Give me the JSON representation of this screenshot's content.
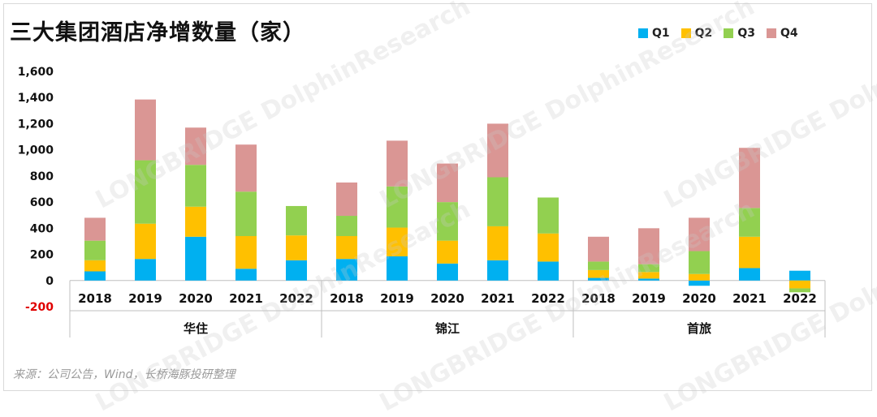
{
  "title": "三大集团酒店净增数量（家）",
  "source": "来源：公司公告，Wind，长桥海豚投研整理",
  "watermark": "LONGBRIDGE DolphinResearch",
  "colors": {
    "Q1": "#00B0F0",
    "Q2": "#FFC000",
    "Q3": "#92D050",
    "Q4": "#DA9694"
  },
  "chart_data": {
    "type": "bar",
    "stacked": true,
    "ylim": [
      -200,
      1600
    ],
    "yticks": [
      -200,
      0,
      200,
      400,
      600,
      800,
      1000,
      1200,
      1400,
      1600
    ],
    "ytick_labels": [
      "-200",
      "0",
      "200",
      "400",
      "600",
      "800",
      "1,000",
      "1,200",
      "1,400",
      "1,600"
    ],
    "legend_position": "top-right",
    "series_names": [
      "Q1",
      "Q2",
      "Q3",
      "Q4"
    ],
    "groups": [
      {
        "name": "华住",
        "years": [
          "2018",
          "2019",
          "2020",
          "2021",
          "2022"
        ],
        "Q1": [
          70,
          165,
          335,
          90,
          155
        ],
        "Q2": [
          85,
          270,
          230,
          250,
          190
        ],
        "Q3": [
          150,
          485,
          320,
          340,
          225
        ],
        "Q4": [
          175,
          465,
          285,
          360,
          0
        ]
      },
      {
        "name": "锦江",
        "years": [
          "2018",
          "2019",
          "2020",
          "2021",
          "2022"
        ],
        "Q1": [
          165,
          185,
          130,
          155,
          145
        ],
        "Q2": [
          175,
          220,
          175,
          260,
          215
        ],
        "Q3": [
          155,
          315,
          295,
          375,
          275
        ],
        "Q4": [
          255,
          350,
          295,
          410,
          0
        ]
      },
      {
        "name": "首旅",
        "years": [
          "2018",
          "2019",
          "2020",
          "2021",
          "2022"
        ],
        "Q1": [
          20,
          15,
          -40,
          95,
          75
        ],
        "Q2": [
          60,
          50,
          50,
          240,
          -60
        ],
        "Q3": [
          65,
          60,
          175,
          220,
          -30
        ],
        "Q4": [
          190,
          275,
          255,
          460,
          0
        ]
      }
    ]
  }
}
